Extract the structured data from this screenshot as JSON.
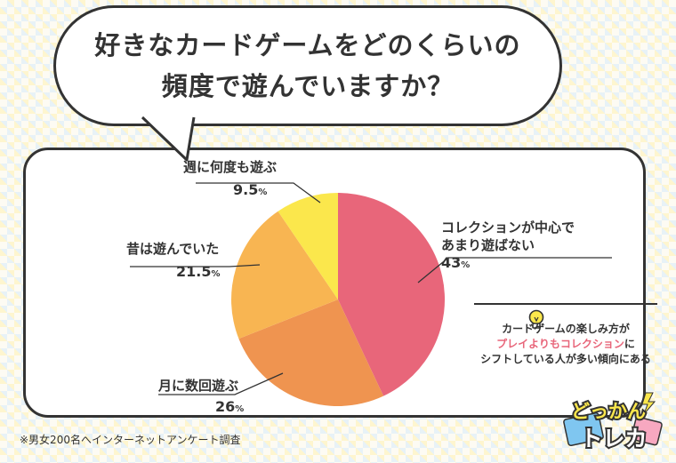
{
  "title": {
    "line1": "好きなカードゲームをどのくらいの",
    "line2": "頻度で遊んでいますか？"
  },
  "chart_data": {
    "type": "pie",
    "slices": [
      {
        "label_lines": [
          "コレクションが中心で",
          "あまり遊ばない"
        ],
        "value": 43,
        "value_label": "43",
        "color": "#e8667a"
      },
      {
        "label_lines": [
          "月に数回遊ぶ"
        ],
        "value": 26,
        "value_label": "26",
        "color": "#ef9450"
      },
      {
        "label_lines": [
          "昔は遊んでいた"
        ],
        "value": 21.5,
        "value_label": "21.5",
        "color": "#f8b552"
      },
      {
        "label_lines": [
          "週に何度も遊ぶ"
        ],
        "value": 9.5,
        "value_label": "9.5",
        "color": "#fbe74c"
      }
    ],
    "unit": "%"
  },
  "note": {
    "line1": "カードゲームの楽しみ方が",
    "line2": "プレイよりもコレクション",
    "line2_suffix": "に",
    "line3": "シフトしている人が多い傾向にある"
  },
  "footnote": "※男女200名へインターネットアンケート調査",
  "logo": {
    "top": "どっかん",
    "bottom": "トレカ"
  },
  "colors": {
    "outline": "#333333",
    "accent": "#e8667a"
  },
  "icons": [
    "lightbulb-icon"
  ]
}
